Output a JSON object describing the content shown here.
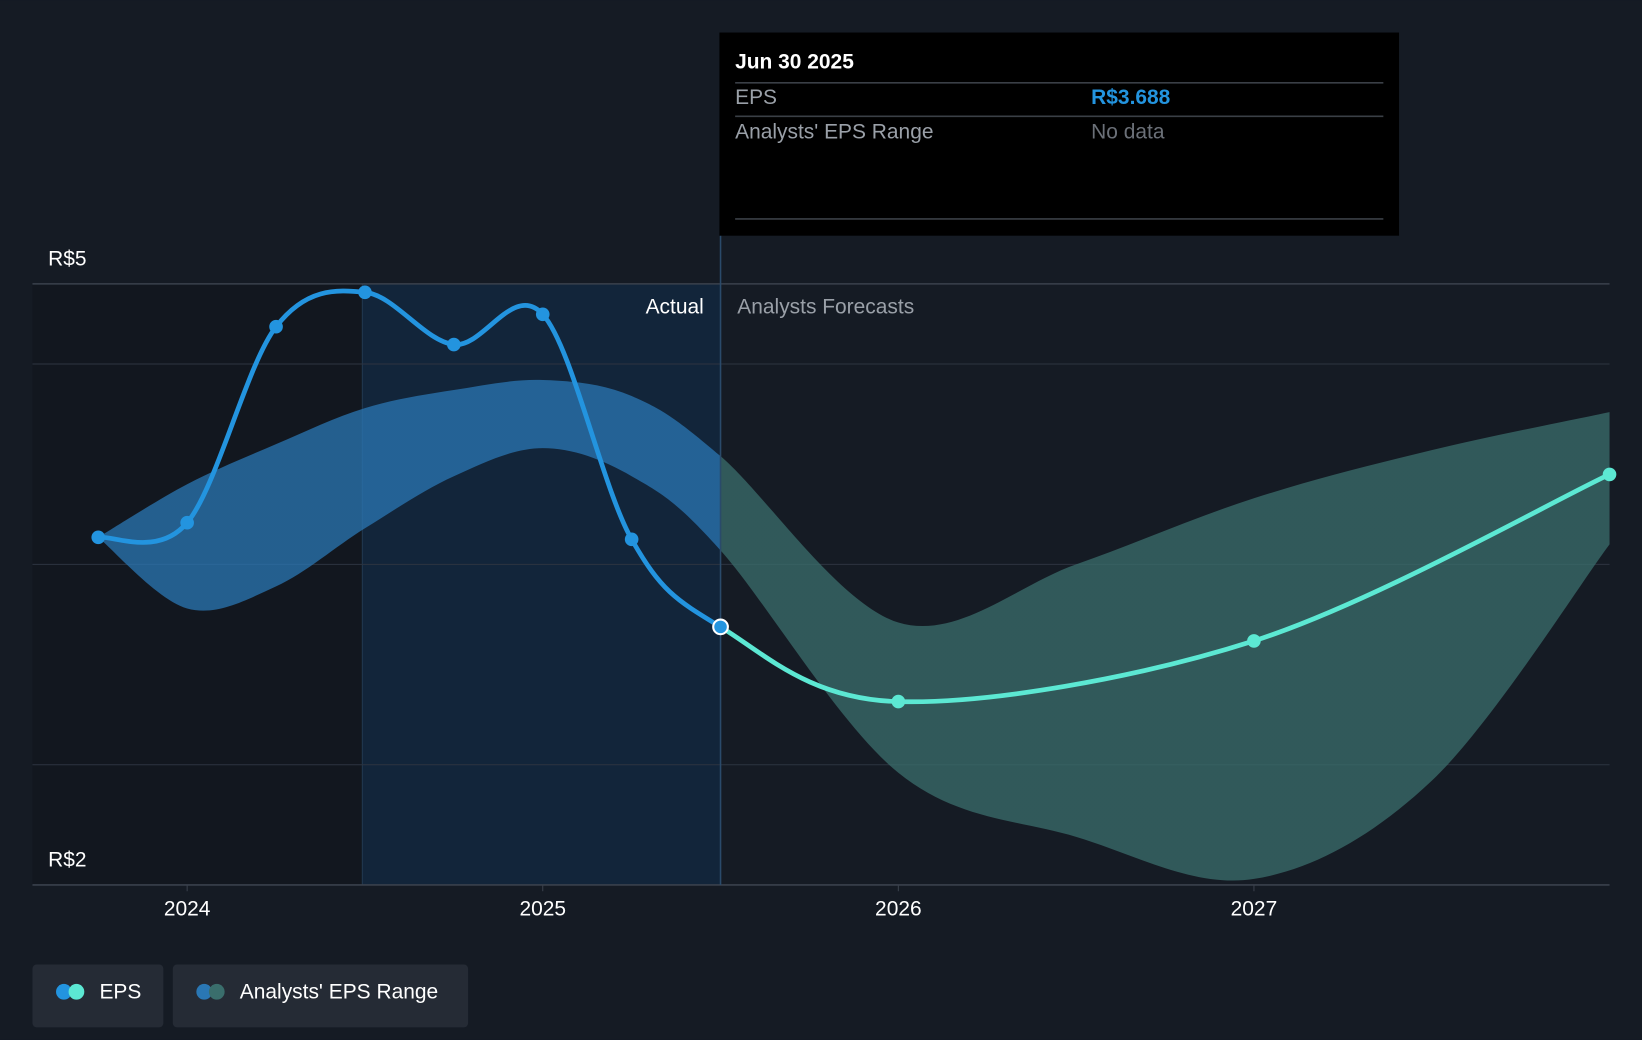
{
  "chart_data": {
    "type": "line",
    "xlim": [
      2023.565,
      2028.0
    ],
    "xticks": [
      2024,
      2025,
      2026,
      2027
    ],
    "ylim": [
      2.4,
      5.4
    ],
    "yticks": [
      {
        "value": 5.4,
        "label": "R$5"
      },
      {
        "value": 2.4,
        "label": "R$2"
      }
    ],
    "ygrid": [
      5,
      4,
      3
    ],
    "divider_x": 2025.5,
    "sections": [
      "Actual",
      "Analysts Forecasts"
    ],
    "series": [
      {
        "name": "EPS",
        "color": "#2394df",
        "forecast_color": "#5ce8d3",
        "x": [
          2023.75,
          2024.0,
          2024.25,
          2024.5,
          2024.75,
          2025.0,
          2025.25,
          2025.5,
          2026.0,
          2027.0,
          2028.0
        ],
        "values": [
          4.135,
          4.208,
          5.186,
          5.358,
          5.097,
          5.248,
          4.125,
          3.688,
          3.315,
          3.618,
          4.449
        ]
      },
      {
        "name": "Analysts' EPS Range",
        "color": "#2a77b4",
        "forecast_color": "#3a6e6c",
        "x": [
          2023.75,
          2024.0,
          2024.25,
          2024.5,
          2024.75,
          2025.0,
          2025.25,
          2025.5,
          2026.0,
          2026.5,
          2027.0,
          2027.5,
          2028.0
        ],
        "high": [
          4.135,
          4.4,
          4.6,
          4.78,
          4.87,
          4.92,
          4.84,
          4.54,
          3.71,
          4.0,
          4.33,
          4.57,
          4.76
        ],
        "low": [
          4.135,
          3.78,
          3.89,
          4.18,
          4.44,
          4.58,
          4.44,
          4.07,
          2.96,
          2.64,
          2.43,
          2.92,
          4.1
        ]
      }
    ],
    "tooltip": {
      "date": "Jun 30 2025",
      "rows": [
        {
          "label": "EPS",
          "value": "R$3.688"
        },
        {
          "label": "Analysts' EPS Range",
          "value": "No data"
        }
      ]
    }
  }
}
